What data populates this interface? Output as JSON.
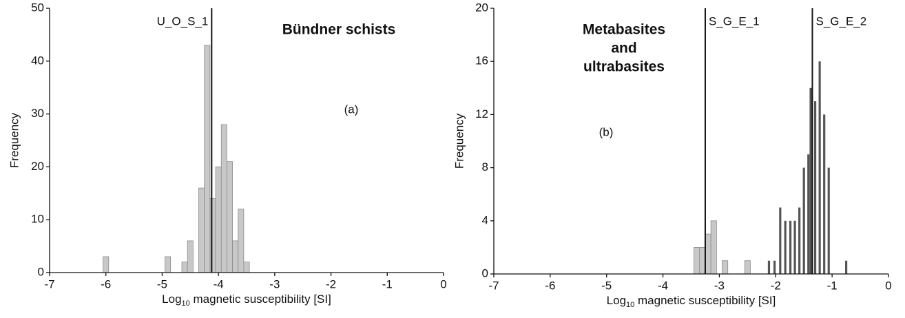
{
  "chart_data": [
    {
      "type": "histogram",
      "title": [
        "Bündner schists"
      ],
      "panel": "(a)",
      "ylabel": "Frequency",
      "xlabel": {
        "base": "Log",
        "sub": "10",
        "rest": " magnetic susceptibility [SI]"
      },
      "xlim": [
        -7,
        0
      ],
      "ylim": [
        0,
        50
      ],
      "xticks": [
        -7,
        -6,
        -5,
        -4,
        -3,
        -2,
        -1,
        0
      ],
      "yticks": [
        0,
        10,
        20,
        30,
        40,
        50
      ],
      "series": [
        {
          "color": "#c8c8c8",
          "bins": [
            -6.05,
            -5.95,
            -5.85,
            -5.75,
            -5.65,
            -5.55,
            -5.45,
            -5.35,
            -5.25,
            -5.15,
            -5.05,
            -4.95,
            -4.85,
            -4.75,
            -4.65,
            -4.55,
            -4.45,
            -4.35,
            -4.25,
            -4.15,
            -4.05,
            -3.95,
            -3.85,
            -3.75,
            -3.65,
            -3.55,
            -3.45
          ],
          "values": [
            3,
            0,
            0,
            0,
            0,
            0,
            0,
            0,
            0,
            0,
            0,
            3,
            0,
            0,
            2,
            6,
            0,
            16,
            43,
            14,
            20,
            28,
            21,
            6,
            12,
            2
          ]
        }
      ],
      "vlines": [
        {
          "x": -4.12,
          "label": "U_O_S_1"
        }
      ]
    },
    {
      "type": "histogram",
      "title": [
        "Metabasites",
        "and",
        "ultrabasites"
      ],
      "panel": "(b)",
      "ylabel": "Frequency",
      "xlabel": {
        "base": "Log",
        "sub": "10",
        "rest": " magnetic susceptibility [SI]"
      },
      "xlim": [
        -7,
        0
      ],
      "ylim": [
        0,
        20
      ],
      "xticks": [
        -7,
        -6,
        -5,
        -4,
        -3,
        -2,
        -1,
        0
      ],
      "yticks": [
        0,
        4,
        8,
        12,
        16,
        20
      ],
      "series": [
        {
          "color": "#c8c8c8",
          "bins": [
            -3.45,
            -3.35,
            -3.25,
            -3.15,
            -3.05,
            -2.95,
            -2.85,
            -2.75,
            -2.65,
            -2.55,
            -2.45
          ],
          "values": [
            2,
            2,
            3,
            4,
            0,
            1,
            0,
            0,
            0,
            1
          ]
        },
        {
          "color": "#555555",
          "x": [
            -2.12,
            -2.02,
            -1.92,
            -1.83,
            -1.74,
            -1.66,
            -1.58,
            -1.5,
            -1.42,
            -1.38,
            -1.3,
            -1.22,
            -1.14,
            -1.06,
            -0.75
          ],
          "values": [
            1,
            1,
            5,
            4,
            4,
            4,
            5,
            8,
            9,
            14,
            13,
            16,
            12,
            8,
            1
          ]
        }
      ],
      "vlines": [
        {
          "x": -3.25,
          "label": "S_G_E_1"
        },
        {
          "x": -1.35,
          "label": "S_G_E_2"
        }
      ]
    }
  ]
}
